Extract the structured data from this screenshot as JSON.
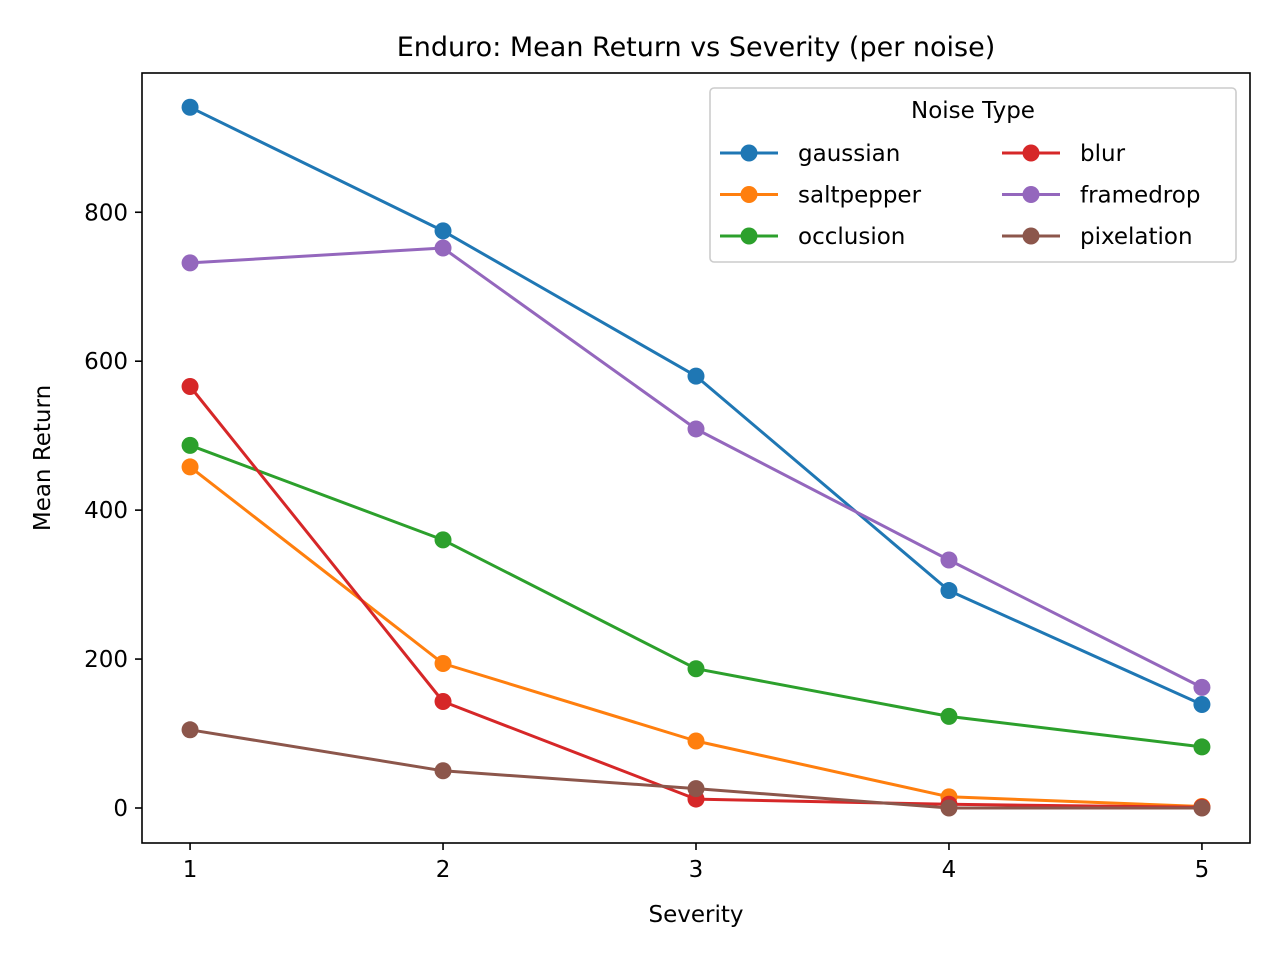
{
  "chart_data": {
    "type": "line",
    "title": "Enduro: Mean Return vs Severity (per noise)",
    "xlabel": "Severity",
    "ylabel": "Mean Return",
    "x": [
      1,
      2,
      3,
      4,
      5
    ],
    "xlim": [
      0.81,
      5.19
    ],
    "ylim": [
      -47,
      987
    ],
    "xticks": [
      "1",
      "2",
      "3",
      "4",
      "5"
    ],
    "yticks": [
      0,
      200,
      400,
      600,
      800
    ],
    "grid": false,
    "legend": {
      "title": "Noise Type",
      "placement": "top-right",
      "columns": 2
    },
    "series": [
      {
        "name": "gaussian",
        "color": "#1f77b4",
        "marker": "circle",
        "values": [
          941,
          775,
          580,
          292,
          139
        ]
      },
      {
        "name": "saltpepper",
        "color": "#ff7f0e",
        "marker": "circle",
        "values": [
          458,
          194,
          90,
          15,
          2
        ]
      },
      {
        "name": "occlusion",
        "color": "#2ca02c",
        "marker": "circle",
        "values": [
          487,
          360,
          187,
          123,
          82
        ]
      },
      {
        "name": "blur",
        "color": "#d62728",
        "marker": "circle",
        "values": [
          566,
          143,
          12,
          5,
          1
        ]
      },
      {
        "name": "framedrop",
        "color": "#9467bd",
        "marker": "circle",
        "values": [
          732,
          752,
          509,
          333,
          162
        ]
      },
      {
        "name": "pixelation",
        "color": "#8c564b",
        "marker": "circle",
        "values": [
          105,
          50,
          26,
          0,
          0
        ]
      }
    ]
  }
}
